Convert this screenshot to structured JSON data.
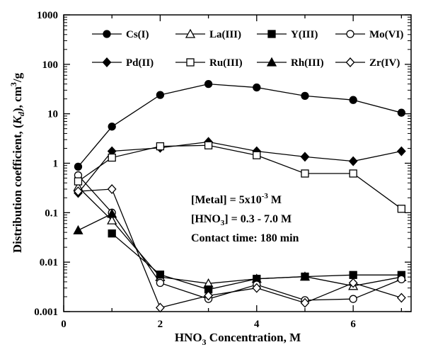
{
  "chart_data": {
    "type": "line",
    "xlabel": "HNO3 Concentration, M",
    "xlabel_parts": {
      "pre": "HNO",
      "sub": "3",
      "post": " Concentration, M"
    },
    "ylabel": "Distribution coefficient, (Kd), cm3/g",
    "ylabel_parts": {
      "pre": "Distribution coefficient, (",
      "kd": "K",
      "kd_sub": "d",
      "mid": "), cm",
      "sup": "3",
      "post": "/g"
    },
    "y_scale": "log",
    "xlim": [
      0,
      7.2
    ],
    "ylim": [
      0.001,
      1000
    ],
    "x_ticks": [
      0,
      2,
      4,
      6
    ],
    "x_tick_labels": [
      "0",
      "2",
      "4",
      "6"
    ],
    "y_ticks": [
      0.001,
      0.01,
      0.1,
      1,
      10,
      100,
      1000
    ],
    "y_tick_labels": [
      "0.001",
      "0.01",
      "0.1",
      "1",
      "10",
      "100",
      "1000"
    ],
    "grid": false,
    "legend_placement": "top",
    "series": [
      {
        "name": "Cs(I)",
        "marker": "circle-filled",
        "x": [
          0.3,
          1,
          2,
          3,
          4,
          5,
          6,
          7
        ],
        "y": [
          0.85,
          5.5,
          24,
          40,
          34,
          23,
          19,
          10.5
        ]
      },
      {
        "name": "La(III)",
        "marker": "triangle-open",
        "x": [
          0.3,
          1,
          2,
          3,
          4,
          5,
          6,
          7
        ],
        "y": [
          0.33,
          0.07,
          0.005,
          0.0037,
          0.0046,
          0.0051,
          0.0033,
          0.005
        ]
      },
      {
        "name": "Y(III)",
        "marker": "square-filled",
        "x": [
          1,
          2,
          3,
          4,
          5,
          6,
          7
        ],
        "y": [
          0.038,
          0.0056,
          0.0028,
          0.0046,
          0.0051,
          0.0055,
          0.0055
        ]
      },
      {
        "name": "Mo(VI)",
        "marker": "circle-open",
        "x": [
          0.3,
          1,
          2,
          3,
          4,
          5,
          6,
          7
        ],
        "y": [
          0.57,
          0.1,
          0.0038,
          0.0018,
          0.0035,
          0.0017,
          0.0018,
          0.0045
        ]
      },
      {
        "name": "Pd(II)",
        "marker": "diamond-filled",
        "x": [
          0.3,
          1,
          2,
          3,
          4,
          5,
          6,
          7
        ],
        "y": [
          0.25,
          1.75,
          2.05,
          2.7,
          1.75,
          1.35,
          1.1,
          1.75
        ]
      },
      {
        "name": "Ru(III)",
        "marker": "square-open",
        "x": [
          0.3,
          1,
          2,
          3,
          4,
          5,
          6,
          7
        ],
        "y": [
          0.43,
          1.3,
          2.2,
          2.3,
          1.45,
          0.62,
          0.62,
          0.12
        ]
      },
      {
        "name": "Rh(III)",
        "marker": "triangle-filled",
        "x": [
          0.3,
          1
        ],
        "y": [
          0.044,
          0.095
        ]
      },
      {
        "name": "Zr(IV)",
        "marker": "diamond-open",
        "x": [
          0.3,
          1,
          2,
          3,
          4,
          5,
          6,
          7
        ],
        "y": [
          0.27,
          0.3,
          0.0012,
          0.0021,
          0.003,
          0.0015,
          0.0038,
          0.0019
        ]
      }
    ],
    "annotations": [
      {
        "id": "metal",
        "pre": "[Metal] = 5x10",
        "sup": "-3",
        "post": " M"
      },
      {
        "id": "hno3",
        "pre": "[HNO",
        "sub": "3",
        "post": "] = 0.3 - 7.0 M"
      },
      {
        "id": "contact",
        "text": "Contact time: 180 min"
      }
    ]
  }
}
